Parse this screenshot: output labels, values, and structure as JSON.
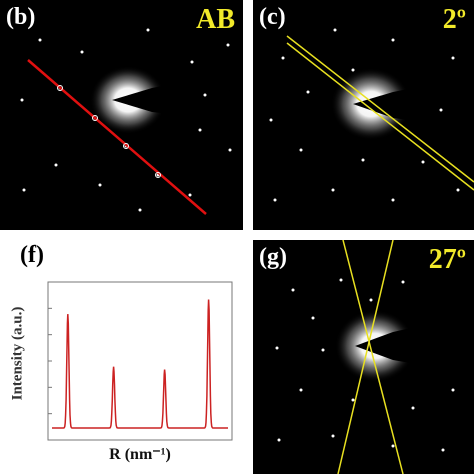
{
  "panels": {
    "b": {
      "label": "(b)",
      "tag": "AB"
    },
    "c": {
      "label": "(c)",
      "tag": "2º"
    },
    "f": {
      "label": "(f)",
      "ylabel": "Intensity (a.u.)",
      "xlabel": "R (nm⁻¹)"
    },
    "g": {
      "label": "(g)",
      "tag": "27º"
    }
  },
  "colors": {
    "line_b": "#e01010",
    "line_yellow": "#e8e020",
    "plot_line": "#cc2222",
    "background": "#000000"
  },
  "chart_data": {
    "type": "line",
    "title": "",
    "xlabel": "R (nm⁻¹)",
    "ylabel": "Intensity (a.u.)",
    "grid": false,
    "peaks": [
      {
        "position": 0.09,
        "height": 0.78
      },
      {
        "position": 0.35,
        "height": 0.42
      },
      {
        "position": 0.64,
        "height": 0.4
      },
      {
        "position": 0.89,
        "height": 0.88
      }
    ]
  }
}
